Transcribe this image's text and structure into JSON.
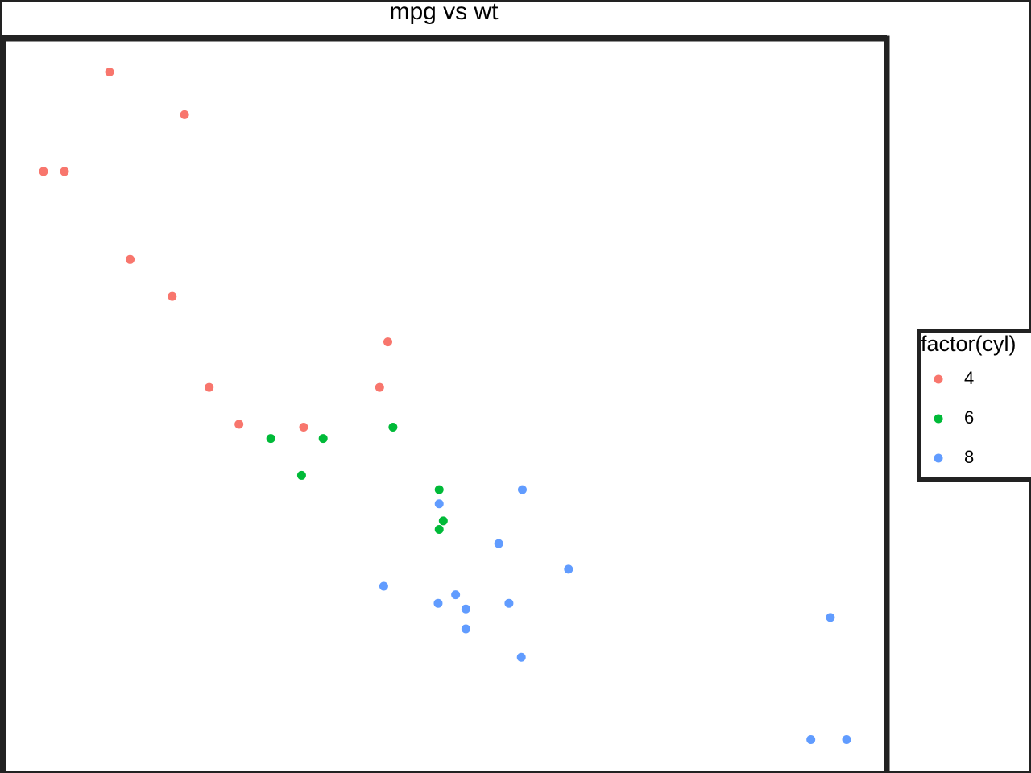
{
  "chart_data": {
    "type": "scatter",
    "title": "mpg vs wt",
    "legend_title": "factor(cyl)",
    "legend_position": "right",
    "xlim": [
      1.317,
      5.62
    ],
    "ylim": [
      9.225,
      35.075
    ],
    "series": [
      {
        "name": "4",
        "color": "#F8766D",
        "x": [
          2.32,
          3.19,
          3.15,
          2.2,
          1.615,
          1.835,
          2.465,
          1.935,
          2.14,
          1.513,
          2.78
        ],
        "values": [
          22.8,
          24.4,
          22.8,
          32.4,
          30.4,
          33.9,
          21.5,
          27.3,
          26.0,
          30.4,
          21.4
        ]
      },
      {
        "name": "6",
        "color": "#00BA38",
        "x": [
          2.62,
          2.875,
          3.215,
          3.46,
          3.44,
          3.44,
          2.77
        ],
        "values": [
          21.0,
          21.0,
          21.4,
          18.1,
          19.2,
          17.8,
          19.7
        ]
      },
      {
        "name": "8",
        "color": "#619CFF",
        "x": [
          3.44,
          3.57,
          4.07,
          3.73,
          3.78,
          5.25,
          5.424,
          5.345,
          3.52,
          3.435,
          3.84,
          3.845,
          3.17,
          3.57
        ],
        "values": [
          18.7,
          14.3,
          16.4,
          17.3,
          15.2,
          10.4,
          10.4,
          14.7,
          15.5,
          15.2,
          13.3,
          19.2,
          15.8,
          15.0
        ]
      }
    ]
  }
}
